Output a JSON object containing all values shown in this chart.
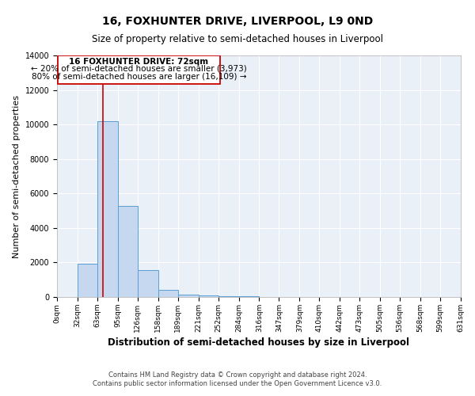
{
  "title": "16, FOXHUNTER DRIVE, LIVERPOOL, L9 0ND",
  "subtitle": "Size of property relative to semi-detached houses in Liverpool",
  "xlabel": "Distribution of semi-detached houses by size in Liverpool",
  "ylabel": "Number of semi-detached properties",
  "footnote1": "Contains HM Land Registry data © Crown copyright and database right 2024.",
  "footnote2": "Contains public sector information licensed under the Open Government Licence v3.0.",
  "annotation_title": "16 FOXHUNTER DRIVE: 72sqm",
  "annotation_line1": "← 20% of semi-detached houses are smaller (3,973)",
  "annotation_line2": "80% of semi-detached houses are larger (16,109) →",
  "property_size": 72,
  "bin_edges": [
    0,
    32,
    63,
    95,
    126,
    158,
    189,
    221,
    252,
    284,
    316,
    347,
    379,
    410,
    442,
    473,
    505,
    536,
    568,
    599,
    631
  ],
  "bar_heights": [
    0,
    1950,
    10200,
    5300,
    1550,
    400,
    150,
    80,
    50,
    30,
    10,
    5,
    2,
    1,
    1,
    0,
    0,
    0,
    0,
    0
  ],
  "bar_color": "#c5d8f0",
  "bar_edge_color": "#5a9fd4",
  "vline_color": "#cc0000",
  "vline_x": 72,
  "box_color": "#cc0000",
  "ylim": [
    0,
    14000
  ],
  "background_color": "#eaf0f8",
  "title_fontsize": 10,
  "subtitle_fontsize": 8.5,
  "axis_label_fontsize": 8,
  "tick_fontsize": 6.5,
  "annotation_fontsize": 7.5,
  "footnote_fontsize": 6
}
